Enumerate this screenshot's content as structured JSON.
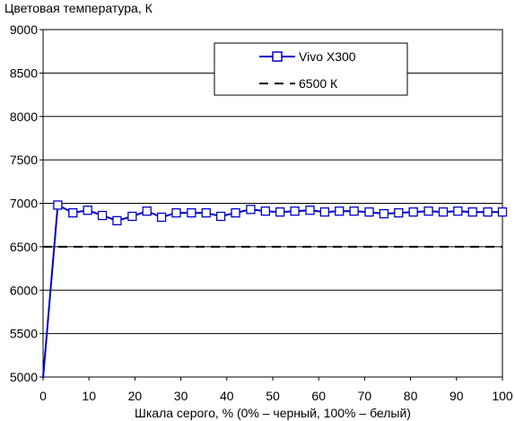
{
  "chart_data": {
    "type": "line",
    "title": "",
    "ylabel": "Цветовая температура, К",
    "xlabel": "Шкала серого, % (0% – черный, 100% – белый)",
    "xlim": [
      0,
      100
    ],
    "ylim": [
      5000,
      9000
    ],
    "x_ticks": [
      0,
      10,
      20,
      30,
      40,
      50,
      60,
      70,
      80,
      90,
      100
    ],
    "y_ticks": [
      5000,
      5500,
      6000,
      6500,
      7000,
      7500,
      8000,
      8500,
      9000
    ],
    "grid": "horizontal",
    "legend_position": "top-right",
    "series": [
      {
        "name": "Vivo X300",
        "color": "#0000c8",
        "marker": "open-square",
        "x": [
          0,
          3.2,
          6.5,
          9.7,
          12.9,
          16.1,
          19.4,
          22.6,
          25.8,
          29.0,
          32.3,
          35.5,
          38.7,
          41.9,
          45.2,
          48.4,
          51.6,
          54.8,
          58.1,
          61.3,
          64.5,
          67.7,
          71.0,
          74.2,
          77.4,
          80.6,
          83.9,
          87.1,
          90.3,
          93.5,
          96.8,
          100
        ],
        "values": [
          4990,
          6980,
          6890,
          6920,
          6860,
          6800,
          6850,
          6910,
          6840,
          6890,
          6890,
          6890,
          6850,
          6890,
          6930,
          6910,
          6900,
          6910,
          6920,
          6900,
          6910,
          6910,
          6900,
          6880,
          6890,
          6900,
          6910,
          6900,
          6910,
          6900,
          6900,
          6900
        ]
      },
      {
        "name": "6500 К",
        "color": "#000000",
        "style": "dashed",
        "x": [
          0,
          100
        ],
        "values": [
          6500,
          6500
        ]
      }
    ]
  }
}
